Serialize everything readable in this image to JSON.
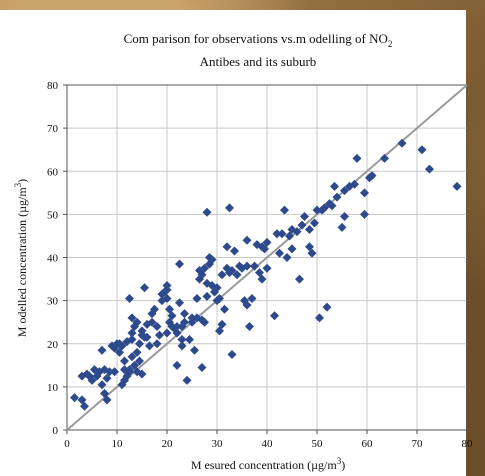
{
  "chart_data": {
    "type": "scatter",
    "title": "Com parison for observations vs.m odelling of NO",
    "title_subscript": "2",
    "subtitle": "Antibes and its suburb",
    "xlabel": "M esured concentration (µg/m",
    "xlabel_superscript": "3",
    "xlabel_end": ")",
    "ylabel": "M odelled concentration (µg/m",
    "ylabel_superscript": "3",
    "ylabel_end": ")",
    "xlim": [
      0,
      80
    ],
    "ylim": [
      0,
      80
    ],
    "xticks": [
      0,
      10,
      20,
      30,
      40,
      50,
      60,
      70,
      80
    ],
    "yticks": [
      0,
      10,
      20,
      30,
      40,
      50,
      60,
      70,
      80
    ],
    "grid": true,
    "reference_line": {
      "x": [
        0,
        80
      ],
      "y": [
        0,
        80
      ],
      "color": "#9a9a9a"
    },
    "series": [
      {
        "color": "#2e4a8c",
        "marker": "diamond",
        "points": [
          [
            1.5,
            7.5
          ],
          [
            3,
            7
          ],
          [
            3.5,
            5.5
          ],
          [
            3,
            12.5
          ],
          [
            4,
            13
          ],
          [
            4.5,
            12.5
          ],
          [
            5,
            11.5
          ],
          [
            5.5,
            14
          ],
          [
            6,
            12.5
          ],
          [
            6.5,
            13.5
          ],
          [
            7,
            10.5
          ],
          [
            7.5,
            14
          ],
          [
            7,
            18.5
          ],
          [
            7.5,
            8.5
          ],
          [
            8,
            7
          ],
          [
            8,
            12
          ],
          [
            8.5,
            13.5
          ],
          [
            9,
            19.5
          ],
          [
            9.5,
            13.5
          ],
          [
            9.5,
            19
          ],
          [
            10,
            20
          ],
          [
            10.5,
            20
          ],
          [
            10.5,
            18
          ],
          [
            11,
            19.5
          ],
          [
            11,
            10.5
          ],
          [
            11.5,
            11.5
          ],
          [
            11.5,
            14
          ],
          [
            11.5,
            16
          ],
          [
            12,
            20.5
          ],
          [
            12,
            12.5
          ],
          [
            12.5,
            14
          ],
          [
            12.5,
            13.5
          ],
          [
            12.5,
            30.5
          ],
          [
            13,
            17
          ],
          [
            13,
            21
          ],
          [
            13,
            22.5
          ],
          [
            13,
            26
          ],
          [
            13.5,
            24
          ],
          [
            13.5,
            15
          ],
          [
            14,
            13.5
          ],
          [
            14,
            18
          ],
          [
            14,
            25
          ],
          [
            14.5,
            20
          ],
          [
            14.5,
            16
          ],
          [
            15,
            13
          ],
          [
            15,
            22
          ],
          [
            15,
            23
          ],
          [
            15.5,
            33
          ],
          [
            15.5,
            21.5
          ],
          [
            16,
            24.5
          ],
          [
            16,
            21.5
          ],
          [
            16.5,
            19.5
          ],
          [
            17,
            27
          ],
          [
            17,
            25
          ],
          [
            17.5,
            28
          ],
          [
            18,
            20
          ],
          [
            18,
            24
          ],
          [
            18.5,
            22
          ],
          [
            19,
            30
          ],
          [
            19,
            31.5
          ],
          [
            19.5,
            32
          ],
          [
            20,
            32.5
          ],
          [
            20,
            33.5
          ],
          [
            20,
            30.5
          ],
          [
            20,
            22.5
          ],
          [
            20.5,
            28
          ],
          [
            20.5,
            25
          ],
          [
            21,
            26.5
          ],
          [
            21,
            24
          ],
          [
            21.5,
            23.5
          ],
          [
            22,
            24
          ],
          [
            22,
            22.5
          ],
          [
            22,
            15
          ],
          [
            22.5,
            38.5
          ],
          [
            22.5,
            29.5
          ],
          [
            23,
            21
          ],
          [
            23,
            24
          ],
          [
            23,
            19.5
          ],
          [
            23.5,
            27
          ],
          [
            23.5,
            25
          ],
          [
            24,
            11.5
          ],
          [
            24.5,
            21
          ],
          [
            25,
            25
          ],
          [
            25,
            26
          ],
          [
            25.5,
            18.5
          ],
          [
            26,
            30.5
          ],
          [
            26,
            26
          ],
          [
            26.5,
            35
          ],
          [
            26.5,
            37
          ],
          [
            27,
            36
          ],
          [
            27,
            14.5
          ],
          [
            27,
            25.5
          ],
          [
            27.5,
            25
          ],
          [
            27.5,
            37.5
          ],
          [
            28,
            50.5
          ],
          [
            28,
            34
          ],
          [
            28,
            31
          ],
          [
            28.5,
            40
          ],
          [
            28.5,
            38.5
          ],
          [
            29,
            33.5
          ],
          [
            29,
            39.5
          ],
          [
            29.5,
            32
          ],
          [
            30,
            33
          ],
          [
            30,
            30
          ],
          [
            30.5,
            30.5
          ],
          [
            30.5,
            23
          ],
          [
            31,
            24.5
          ],
          [
            31,
            36
          ],
          [
            31.5,
            28
          ],
          [
            32,
            37.5
          ],
          [
            32,
            42.5
          ],
          [
            32.5,
            51.5
          ],
          [
            32.5,
            36.5
          ],
          [
            33,
            17.5
          ],
          [
            33,
            37
          ],
          [
            33.5,
            41.5
          ],
          [
            34,
            36
          ],
          [
            34.5,
            38
          ],
          [
            35,
            37.5
          ],
          [
            35.5,
            30
          ],
          [
            36,
            44
          ],
          [
            36,
            38
          ],
          [
            36,
            29
          ],
          [
            36.5,
            24
          ],
          [
            37,
            30.5
          ],
          [
            37.5,
            38
          ],
          [
            38,
            43
          ],
          [
            38.5,
            36.5
          ],
          [
            39,
            42.5
          ],
          [
            39,
            35
          ],
          [
            39.5,
            42
          ],
          [
            40,
            43.5
          ],
          [
            40,
            37.5
          ],
          [
            41.5,
            26.5
          ],
          [
            42,
            45.5
          ],
          [
            42.5,
            41
          ],
          [
            43,
            45.5
          ],
          [
            43.5,
            51
          ],
          [
            44,
            40
          ],
          [
            44.5,
            45
          ],
          [
            45,
            42
          ],
          [
            45,
            46.5
          ],
          [
            46,
            46
          ],
          [
            46.5,
            35
          ],
          [
            47,
            47.5
          ],
          [
            47.5,
            49.5
          ],
          [
            48.5,
            46.5
          ],
          [
            48.5,
            42.5
          ],
          [
            49,
            41
          ],
          [
            49.5,
            48
          ],
          [
            50,
            51
          ],
          [
            50.5,
            26
          ],
          [
            51,
            51
          ],
          [
            51.5,
            51.5
          ],
          [
            52,
            28.5
          ],
          [
            52.5,
            52.5
          ],
          [
            53,
            52
          ],
          [
            53.5,
            56.5
          ],
          [
            54,
            54
          ],
          [
            55,
            47
          ],
          [
            55.5,
            49.5
          ],
          [
            55.5,
            55.5
          ],
          [
            56.5,
            56.5
          ],
          [
            57.5,
            57
          ],
          [
            58,
            63
          ],
          [
            59.5,
            50
          ],
          [
            59.5,
            55
          ],
          [
            60.5,
            58.5
          ],
          [
            61,
            59
          ],
          [
            63.5,
            63
          ],
          [
            67,
            66.5
          ],
          [
            71,
            65
          ],
          [
            72.5,
            60.5
          ],
          [
            78,
            56.5
          ]
        ]
      }
    ]
  }
}
